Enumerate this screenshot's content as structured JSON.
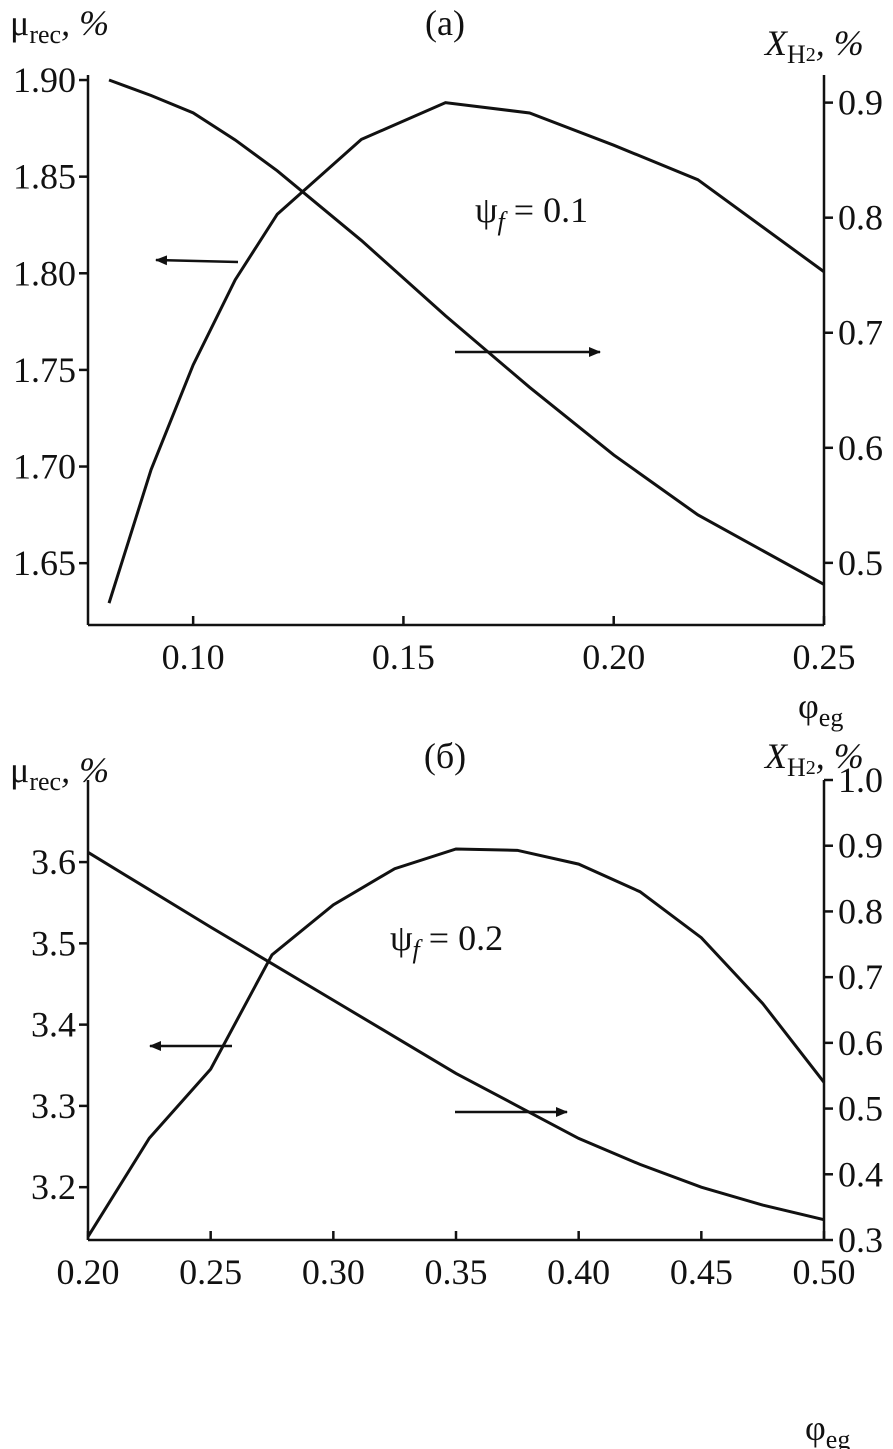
{
  "chart_data": [
    {
      "type": "line",
      "title": "(a)",
      "y_label": {
        "symbol": "μ",
        "sub": "rec",
        "unit": ", %"
      },
      "y2_label": {
        "symbol": "X",
        "sub": "H",
        "subsub": "2",
        "unit": ", %"
      },
      "x_label": {
        "symbol": "φ",
        "sub": "eg"
      },
      "annotation": {
        "symbol": "ψ",
        "sub": "f",
        "text": " = 0.1"
      },
      "x": [
        0.08,
        0.09,
        0.1,
        0.11,
        0.12,
        0.14,
        0.16,
        0.18,
        0.2,
        0.22,
        0.25
      ],
      "series": [
        {
          "color": "#111111",
          "values": [
            1.9,
            1.892,
            1.883,
            1.869,
            1.853,
            1.817,
            1.778,
            1.741,
            1.706,
            1.675,
            1.639
          ]
        },
        {
          "color": "#111111",
          "axis": "y2",
          "values": [
            0.465,
            0.581,
            0.672,
            0.746,
            0.803,
            0.868,
            0.9,
            0.891,
            0.863,
            0.833,
            0.753
          ]
        }
      ],
      "xlim": [
        0.075,
        0.25
      ],
      "xticks": [
        {
          "value": 0.1,
          "label": "0.10"
        },
        0.15,
        {
          "value": 0.2,
          "label": "0.20"
        },
        0.25
      ],
      "ylim": [
        1.618,
        1.9026
      ],
      "yticks": [
        1.65,
        {
          "value": 1.7,
          "label": "1.70"
        },
        1.75,
        {
          "value": 1.8,
          "label": "1.80"
        },
        1.85,
        {
          "value": 1.9,
          "label": "1.90"
        }
      ],
      "y2lim": [
        0.446,
        0.924
      ],
      "y2ticks": [
        0.5,
        0.6,
        0.7,
        0.8,
        0.9
      ]
    },
    {
      "type": "line",
      "title": "(б)",
      "y_label": {
        "symbol": "μ",
        "sub": "rec",
        "unit": ", %"
      },
      "y2_label": {
        "symbol": "X",
        "sub": "H",
        "subsub": "2",
        "unit": ", %"
      },
      "x_label": {
        "symbol": "φ",
        "sub": "eg"
      },
      "annotation": {
        "symbol": "ψ",
        "sub": "f",
        "text": " = 0.2"
      },
      "x": [
        0.2,
        0.225,
        0.25,
        0.275,
        0.3,
        0.325,
        0.35,
        0.375,
        0.4,
        0.425,
        0.45,
        0.475,
        0.5
      ],
      "series": [
        {
          "color": "#111111",
          "values": [
            3.612,
            3.566,
            3.52,
            3.475,
            3.43,
            3.385,
            3.34,
            3.3,
            3.26,
            3.228,
            3.2,
            3.178,
            3.16
          ]
        },
        {
          "color": "#111111",
          "axis": "y2",
          "values": [
            0.305,
            0.455,
            0.56,
            0.734,
            0.81,
            0.865,
            0.895,
            0.893,
            0.872,
            0.83,
            0.76,
            0.66,
            0.54
          ]
        }
      ],
      "xlim": [
        0.2,
        0.5
      ],
      "xticks": [
        {
          "value": 0.2,
          "label": "0.20"
        },
        0.25,
        {
          "value": 0.3,
          "label": "0.30"
        },
        0.35,
        {
          "value": 0.4,
          "label": "0.40"
        },
        0.45,
        {
          "value": 0.5,
          "label": "0.50"
        }
      ],
      "ylim": [
        3.135,
        3.701
      ],
      "yticks": [
        3.2,
        3.3,
        3.4,
        3.5,
        3.6
      ],
      "y2lim": [
        0.3,
        1.0
      ],
      "y2ticks": [
        0.3,
        0.4,
        0.5,
        0.6,
        0.7,
        0.8,
        0.9,
        {
          "value": 1.0,
          "label": "1.0"
        }
      ]
    }
  ]
}
